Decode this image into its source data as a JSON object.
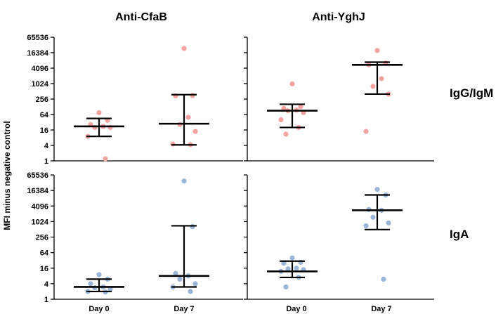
{
  "chart_data": {
    "type": "scatter",
    "ylabel": "MFI minus negative control",
    "y_scale": "log2",
    "ylim": [
      1,
      65536
    ],
    "yticks": [
      "1",
      "4",
      "16",
      "64",
      "256",
      "1024",
      "4096",
      "16384",
      "65536"
    ],
    "categories": [
      "Day 0",
      "Day 7"
    ],
    "column_titles": [
      "Anti-CfaB",
      "Anti-YghJ"
    ],
    "row_titles": [
      "IgG/IgM",
      "IgA"
    ],
    "colors": {
      "IgG/IgM": "#f4a3a3",
      "IgA": "#9bb5d9",
      "summary": "#000000"
    },
    "panels": [
      {
        "antigen": "Anti-CfaB",
        "isotype": "IgG/IgM",
        "groups": [
          {
            "category": "Day 0",
            "points": [
              75,
              38,
              26,
              22,
              20,
              20,
              9,
              1.2
            ],
            "median": 22,
            "lower": 9,
            "upper": 45
          },
          {
            "category": "Day 7",
            "points": [
              24000,
              350,
              340,
              50,
              26,
              14,
              4.5,
              4.3
            ],
            "median": 28,
            "lower": 4.2,
            "upper": 380
          }
        ]
      },
      {
        "antigen": "Anti-YghJ",
        "isotype": "IgG/IgM",
        "groups": [
          {
            "category": "Day 0",
            "points": [
              1000,
              130,
              110,
              95,
              90,
              75,
              40,
              20,
              11
            ],
            "median": 90,
            "lower": 20,
            "upper": 160
          },
          {
            "category": "Day 7",
            "points": [
              20000,
              6500,
              5500,
              1600,
              800,
              400,
              14
            ],
            "median": 5500,
            "lower": 400,
            "upper": 7000
          }
        ]
      },
      {
        "antigen": "Anti-CfaB",
        "isotype": "IgA",
        "groups": [
          {
            "category": "Day 0",
            "points": [
              9,
              6,
              4,
              3,
              2.8,
              2.5,
              2,
              1.9
            ],
            "median": 3,
            "lower": 2,
            "upper": 6
          },
          {
            "category": "Day 7",
            "points": [
              38000,
              650,
              10,
              8,
              6,
              4,
              3,
              2
            ],
            "median": 8,
            "lower": 3,
            "upper": 700
          }
        ]
      },
      {
        "antigen": "Anti-YghJ",
        "isotype": "IgA",
        "groups": [
          {
            "category": "Day 0",
            "points": [
              40,
              27,
              25,
              16,
              15,
              14,
              12,
              7,
              3
            ],
            "median": 12,
            "lower": 7,
            "upper": 30
          },
          {
            "category": "Day 7",
            "points": [
              18000,
              11000,
              3000,
              2800,
              1500,
              900,
              700,
              6
            ],
            "median": 2800,
            "lower": 500,
            "upper": 11000
          }
        ]
      }
    ]
  }
}
